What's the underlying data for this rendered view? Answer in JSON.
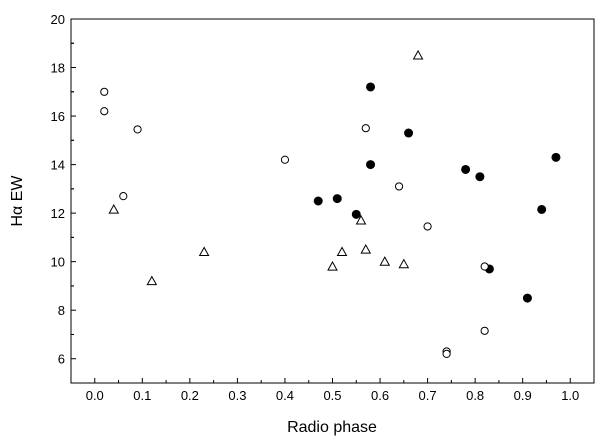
{
  "chart_data": {
    "type": "scatter",
    "xlabel": "Radio phase",
    "ylabel": "Hα EW",
    "xlim": [
      -0.05,
      1.05
    ],
    "ylim": [
      5,
      20
    ],
    "x_ticks": [
      "0.0",
      "0.1",
      "0.2",
      "0.3",
      "0.4",
      "0.5",
      "0.6",
      "0.7",
      "0.8",
      "0.9",
      "1.0"
    ],
    "y_ticks": [
      "6",
      "8",
      "10",
      "12",
      "14",
      "16",
      "18",
      "20"
    ],
    "grid": false,
    "series": [
      {
        "marker": "filled-circle",
        "color": "#000000",
        "points": [
          [
            0.47,
            12.5
          ],
          [
            0.51,
            12.6
          ],
          [
            0.55,
            11.95
          ],
          [
            0.58,
            17.2
          ],
          [
            0.58,
            14.0
          ],
          [
            0.66,
            15.3
          ],
          [
            0.78,
            13.8
          ],
          [
            0.81,
            13.5
          ],
          [
            0.83,
            9.7
          ],
          [
            0.91,
            8.5
          ],
          [
            0.94,
            12.15
          ],
          [
            0.97,
            14.3
          ]
        ]
      },
      {
        "marker": "open-circle",
        "color": "#000000",
        "points": [
          [
            0.02,
            17.0
          ],
          [
            0.02,
            16.2
          ],
          [
            0.06,
            12.7
          ],
          [
            0.09,
            15.45
          ],
          [
            0.4,
            14.2
          ],
          [
            0.57,
            15.5
          ],
          [
            0.64,
            13.1
          ],
          [
            0.7,
            11.45
          ],
          [
            0.74,
            6.3
          ],
          [
            0.74,
            6.2
          ],
          [
            0.82,
            9.8
          ],
          [
            0.82,
            7.15
          ]
        ]
      },
      {
        "marker": "open-triangle",
        "color": "#000000",
        "points": [
          [
            0.04,
            12.15
          ],
          [
            0.12,
            9.2
          ],
          [
            0.23,
            10.4
          ],
          [
            0.5,
            9.8
          ],
          [
            0.52,
            10.4
          ],
          [
            0.56,
            11.7
          ],
          [
            0.57,
            10.5
          ],
          [
            0.61,
            10.0
          ],
          [
            0.65,
            9.9
          ],
          [
            0.68,
            18.5
          ]
        ]
      }
    ]
  }
}
